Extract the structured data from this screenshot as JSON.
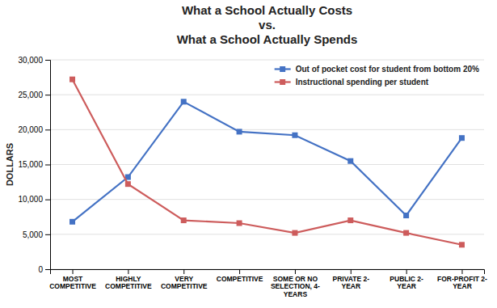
{
  "chart_data": {
    "type": "line",
    "title": "What a School Actually Costs\nvs.\nWhat a School Actually Spends",
    "categories": [
      "MOST\nCOMPETITIVE",
      "HIGHLY\nCOMPETITIVE",
      "VERY\nCOMPETITIVE",
      "COMPETITIVE",
      "SOME OR NO\nSELECTION, 4-\nYEARS",
      "PRIVATE 2-\nYEAR",
      "PUBLIC 2-\nYEAR",
      "FOR-PROFIT 2-\nYEAR"
    ],
    "series": [
      {
        "name": "Out of pocket cost for student from bottom 20%",
        "color": "#4472C4",
        "values": [
          6800,
          13200,
          24000,
          19700,
          19200,
          15500,
          7700,
          18800
        ]
      },
      {
        "name": "Instructional spending per student",
        "color": "#CD5C5C",
        "values": [
          27200,
          12200,
          7000,
          6600,
          5200,
          7000,
          5200,
          3500
        ]
      }
    ],
    "y_label": "DOLLARS",
    "ylim": [
      0,
      30000
    ],
    "yticks": [
      0,
      {
        "value": 5000,
        "label": "5,000"
      },
      {
        "value": 10000,
        "label": "10,000"
      },
      {
        "value": 15000,
        "label": "15,000"
      },
      {
        "value": 20000,
        "label": "20,000"
      },
      {
        "value": 25000,
        "label": "25,000"
      },
      {
        "value": 30000,
        "label": "30,000"
      }
    ],
    "grid": true,
    "legend": "upper right",
    "marker": "square"
  }
}
